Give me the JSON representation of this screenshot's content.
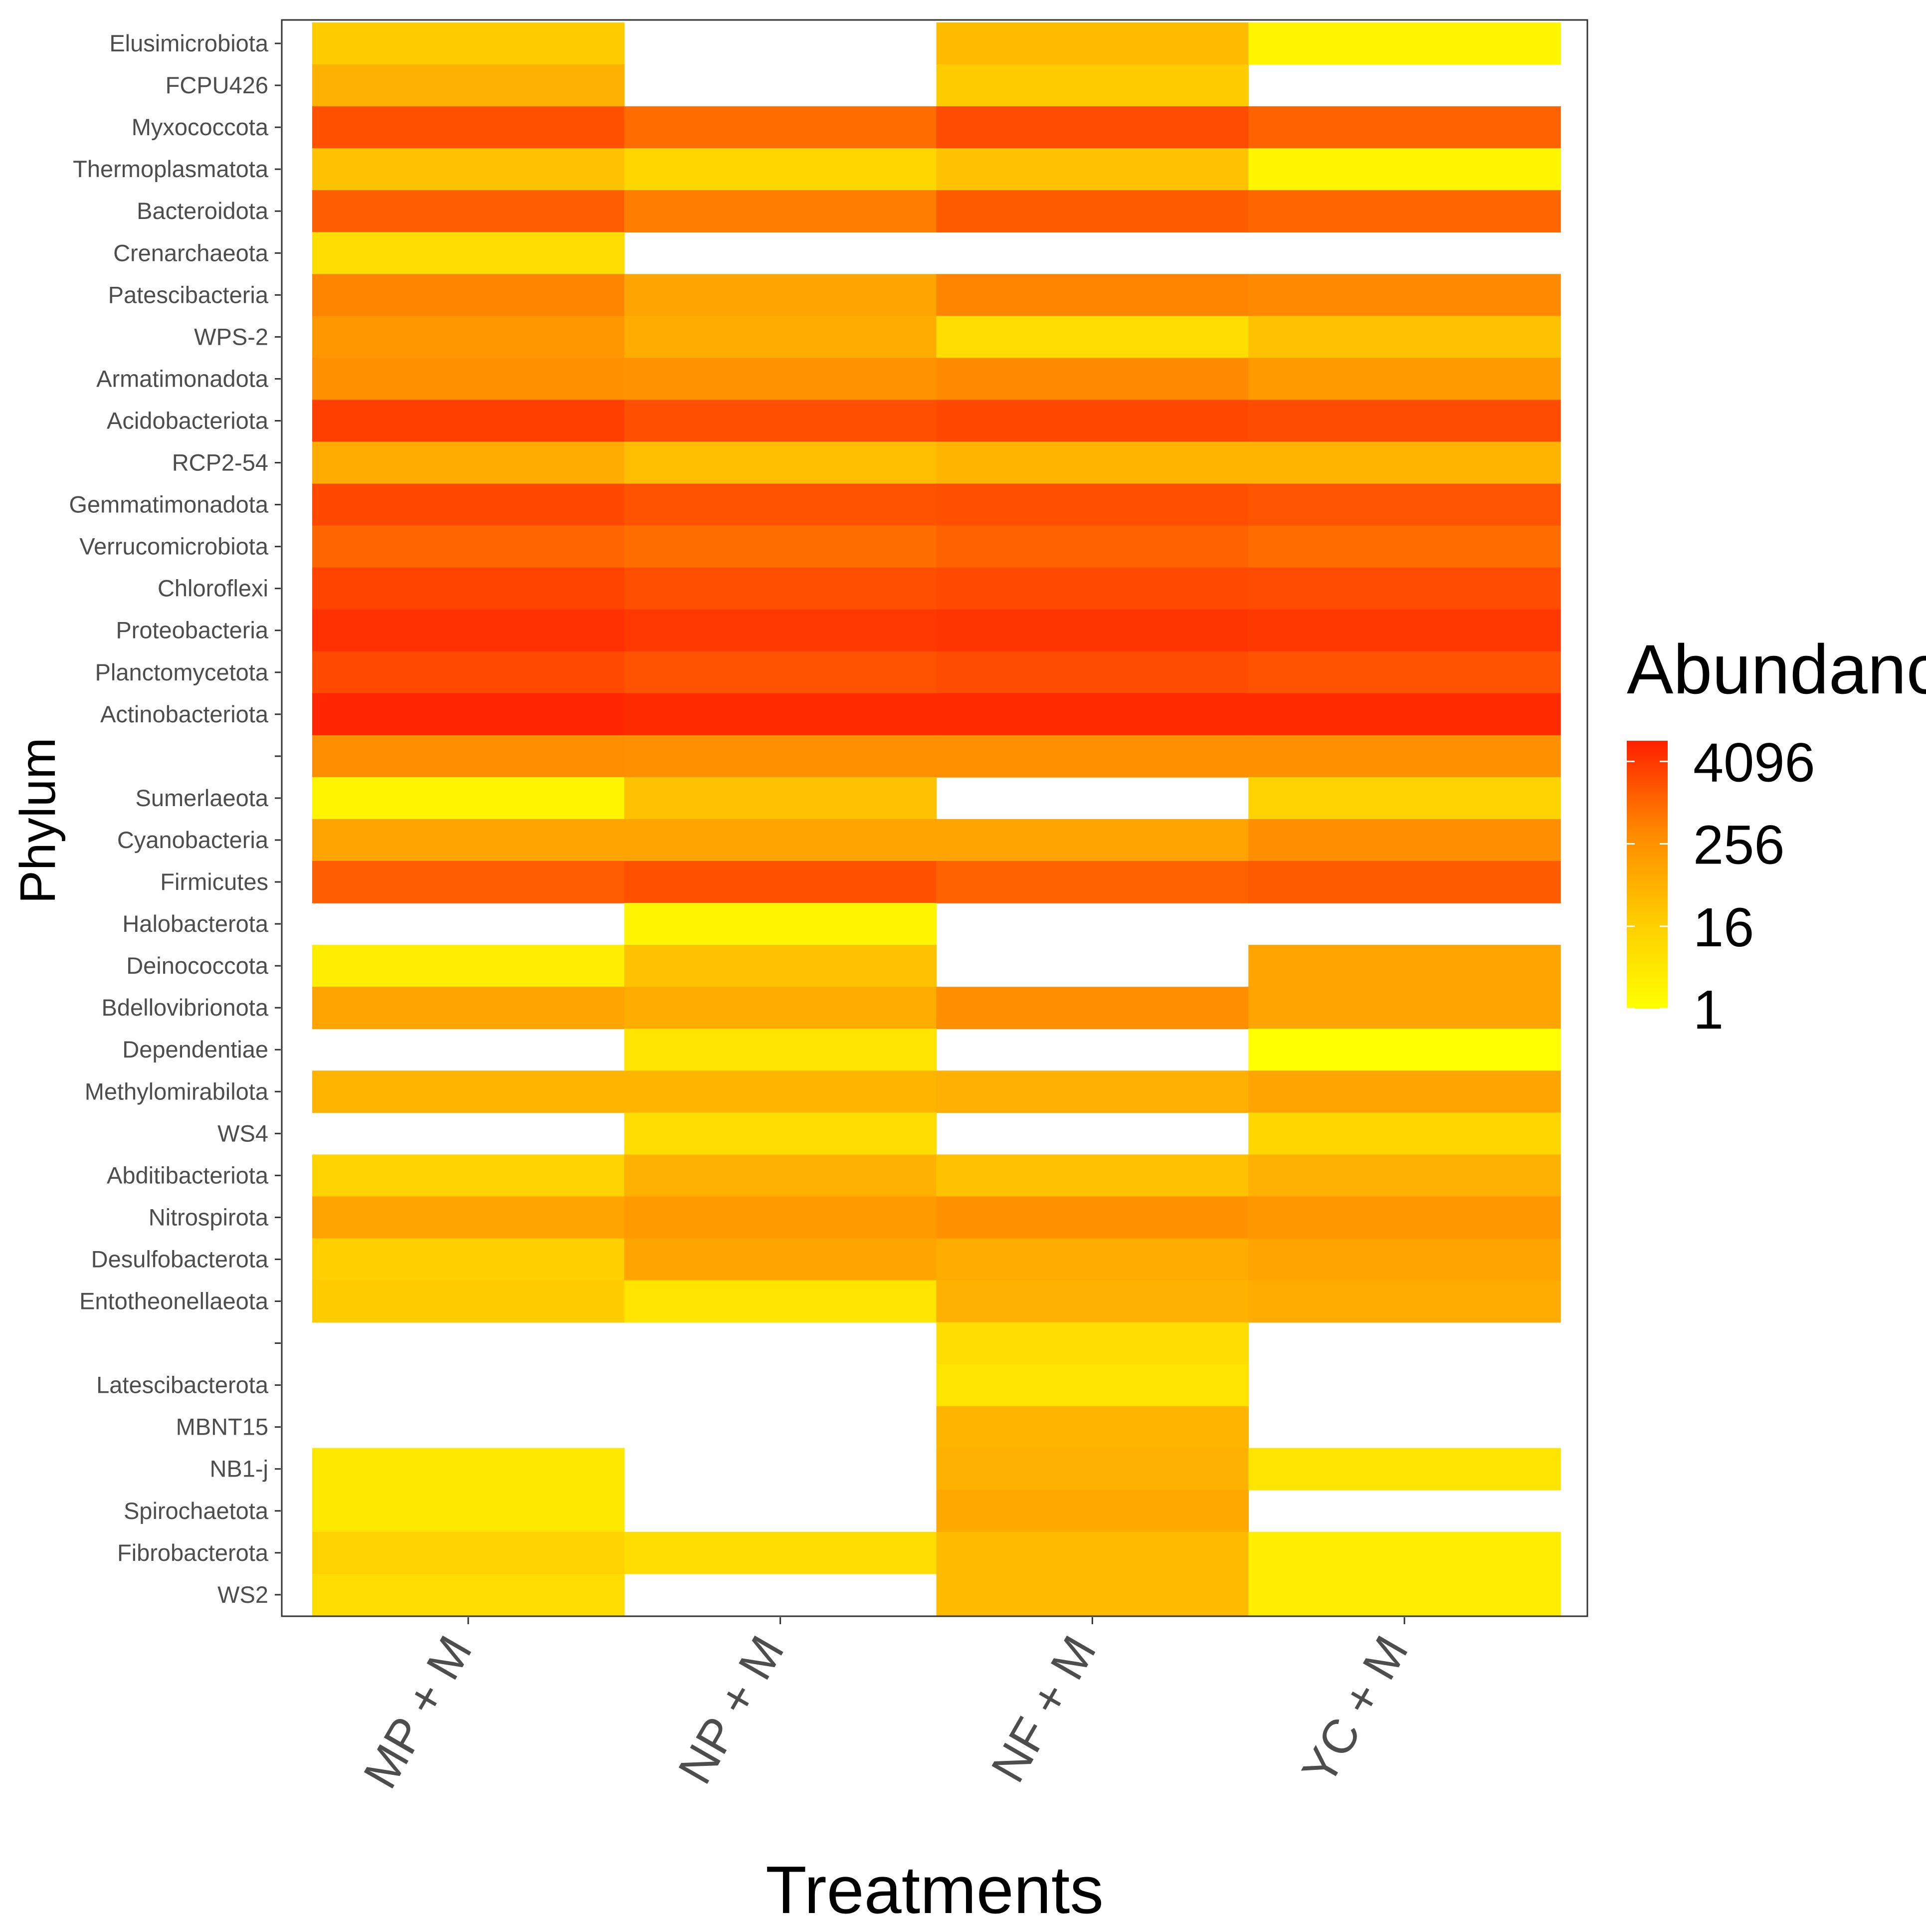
{
  "chart_data": {
    "type": "heatmap",
    "xlabel": "Treatments",
    "ylabel": "Phylum",
    "x_categories": [
      "MP + M",
      "NP + M",
      "NF + M",
      "YC + M"
    ],
    "y_categories": [
      "Elusimicrobiota",
      "FCPU426",
      "Myxococcota",
      "Thermoplasmatota",
      "Bacteroidota",
      "Crenarchaeota",
      "Patescibacteria",
      "WPS-2",
      "Armatimonadota",
      "Acidobacteriota",
      "RCP2-54",
      "Gemmatimonadota",
      "Verrucomicrobiota",
      "Chloroflexi",
      "Proteobacteria",
      "Planctomycetota",
      "Actinobacteriota",
      "",
      "Sumerlaeota",
      "Cyanobacteria",
      "Firmicutes",
      "Halobacterota",
      "Deinococcota",
      "Bdellovibrionota",
      "Dependentiae",
      "Methylomirabilota",
      "WS4",
      "Abditibacteriota",
      "Nitrospirota",
      "Desulfobacterota",
      "Entotheonellaeota",
      "",
      "Latescibacterota",
      "MBNT15",
      "NB1-j",
      "Spirochaetota",
      "Fibrobacterota",
      "WS2"
    ],
    "scale": "log2",
    "color_low": "#ffff00",
    "color_high": "#ff2000",
    "missing_color": "#ffffff",
    "legend": {
      "title": "Abundance",
      "breaks": [
        1,
        16,
        256,
        4096
      ],
      "labels": [
        "1",
        "16",
        "256",
        "4096"
      ],
      "limits": [
        1,
        8192
      ],
      "position": "right"
    },
    "values": [
      [
        8,
        null,
        16,
        1.5
      ],
      [
        24,
        null,
        8,
        null
      ],
      [
        1200,
        400,
        1500,
        600
      ],
      [
        12,
        5,
        12,
        1.5
      ],
      [
        700,
        200,
        800,
        500
      ],
      [
        4,
        null,
        null,
        null
      ],
      [
        150,
        40,
        150,
        120
      ],
      [
        70,
        30,
        4,
        12
      ],
      [
        90,
        80,
        120,
        60
      ],
      [
        2500,
        1300,
        1700,
        1400
      ],
      [
        30,
        14,
        20,
        20
      ],
      [
        1700,
        1100,
        1300,
        1000
      ],
      [
        500,
        350,
        600,
        400
      ],
      [
        2000,
        1300,
        1600,
        1500
      ],
      [
        4500,
        3200,
        3800,
        3400
      ],
      [
        1600,
        1100,
        1400,
        1100
      ],
      [
        7000,
        6000,
        6000,
        6000
      ],
      [
        100,
        90,
        90,
        90
      ],
      [
        1.5,
        12,
        null,
        6
      ],
      [
        40,
        40,
        40,
        100
      ],
      [
        700,
        1200,
        600,
        800
      ],
      [
        null,
        1.5,
        null,
        null
      ],
      [
        2,
        12,
        null,
        40
      ],
      [
        40,
        30,
        100,
        40
      ],
      [
        null,
        3,
        null,
        1
      ],
      [
        20,
        20,
        25,
        40
      ],
      [
        null,
        4,
        null,
        5
      ],
      [
        6,
        24,
        12,
        24
      ],
      [
        40,
        60,
        90,
        70
      ],
      [
        7,
        40,
        30,
        40
      ],
      [
        8,
        3,
        24,
        30
      ],
      [
        null,
        null,
        4,
        null
      ],
      [
        null,
        null,
        3,
        null
      ],
      [
        null,
        null,
        20,
        null
      ],
      [
        2.5,
        null,
        24,
        3
      ],
      [
        2.5,
        null,
        35,
        null
      ],
      [
        6,
        4,
        16,
        2
      ],
      [
        4,
        null,
        16,
        2
      ]
    ]
  }
}
